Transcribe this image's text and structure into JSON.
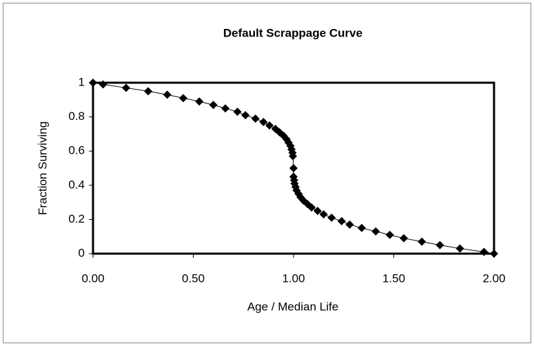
{
  "chart_data": {
    "type": "line",
    "title": "Default Scrappage Curve",
    "x_label": "Age / Median Life",
    "y_label": "Fraction Surviving",
    "x": [
      0,
      0.05,
      0.165,
      0.275,
      0.37,
      0.45,
      0.53,
      0.6,
      0.66,
      0.72,
      0.76,
      0.81,
      0.85,
      0.88,
      0.91,
      0.93,
      0.95,
      0.965,
      0.975,
      0.985,
      0.99,
      0.995,
      0.997,
      1.0,
      1.0,
      1.003,
      1.005,
      1.01,
      1.015,
      1.025,
      1.035,
      1.05,
      1.07,
      1.09,
      1.12,
      1.15,
      1.19,
      1.24,
      1.28,
      1.34,
      1.41,
      1.48,
      1.55,
      1.64,
      1.73,
      1.83,
      1.95,
      2.0
    ],
    "series": [
      {
        "name": "Fraction Surviving",
        "color": "#000000",
        "values": [
          1,
          0.99,
          0.97,
          0.95,
          0.93,
          0.91,
          0.89,
          0.87,
          0.85,
          0.83,
          0.81,
          0.79,
          0.77,
          0.75,
          0.73,
          0.71,
          0.69,
          0.67,
          0.65,
          0.63,
          0.61,
          0.59,
          0.57,
          0.5,
          0.45,
          0.43,
          0.41,
          0.39,
          0.37,
          0.35,
          0.33,
          0.31,
          0.29,
          0.27,
          0.25,
          0.23,
          0.21,
          0.19,
          0.17,
          0.15,
          0.13,
          0.11,
          0.09,
          0.07,
          0.05,
          0.03,
          0.01,
          0
        ]
      }
    ],
    "xlim": [
      0,
      2
    ],
    "ylim": [
      0,
      1
    ],
    "xticks": [
      {
        "value": 0,
        "label": "0.00"
      },
      {
        "value": 0.5,
        "label": "0.50"
      },
      {
        "value": 1,
        "label": "1.00"
      },
      {
        "value": 1.5,
        "label": "1.50"
      },
      {
        "value": 2,
        "label": "2.00"
      }
    ],
    "yticks": [
      0,
      0.2,
      0.4,
      0.6,
      0.8,
      1
    ]
  }
}
